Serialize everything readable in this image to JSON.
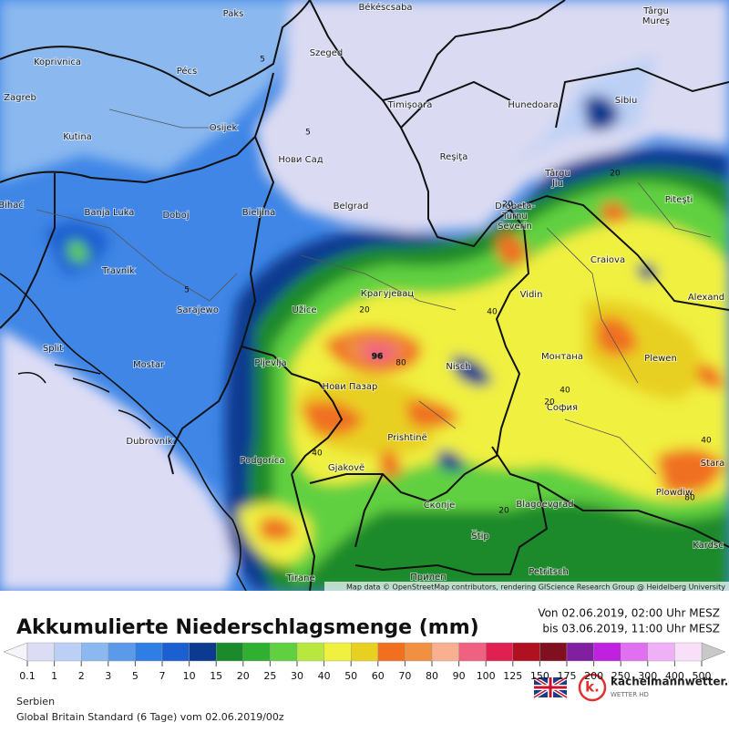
{
  "map": {
    "cities": [
      {
        "lines": [
          "Paks"
        ]
      },
      {
        "lines": [
          "Békéscsaba"
        ]
      },
      {
        "lines": [
          "Târgu",
          "Mureş"
        ]
      },
      {
        "lines": [
          "Koprivnica"
        ]
      },
      {
        "lines": [
          "Pécs"
        ]
      },
      {
        "lines": [
          "Szeged"
        ]
      },
      {
        "lines": [
          "Zagreb"
        ]
      },
      {
        "lines": [
          "Timişoara"
        ]
      },
      {
        "lines": [
          "Hunedoara"
        ]
      },
      {
        "lines": [
          "Sibiu"
        ]
      },
      {
        "lines": [
          "Osijek"
        ]
      },
      {
        "lines": [
          "Kutina"
        ]
      },
      {
        "lines": [
          "Нови Сад"
        ]
      },
      {
        "lines": [
          "Reşiţa"
        ]
      },
      {
        "lines": [
          "Târgu",
          "Jiu"
        ]
      },
      {
        "lines": [
          "Piteşti"
        ]
      },
      {
        "lines": [
          "Bihać"
        ]
      },
      {
        "lines": [
          "Banja Luka"
        ]
      },
      {
        "lines": [
          "Doboj"
        ]
      },
      {
        "lines": [
          "Bieljina"
        ]
      },
      {
        "lines": [
          "Belgrad"
        ]
      },
      {
        "lines": [
          "Drobeta-",
          "Turnu",
          "Severin"
        ]
      },
      {
        "lines": [
          "Craiova"
        ]
      },
      {
        "lines": [
          "Travnik"
        ]
      },
      {
        "lines": [
          "Крагујевац"
        ]
      },
      {
        "lines": [
          "Vidin"
        ]
      },
      {
        "lines": [
          "Alexand"
        ]
      },
      {
        "lines": [
          "Sarajewo"
        ]
      },
      {
        "lines": [
          "Užice"
        ]
      },
      {
        "lines": [
          "Split"
        ]
      },
      {
        "lines": [
          "Монтана"
        ]
      },
      {
        "lines": [
          "Plewen"
        ]
      },
      {
        "lines": [
          "Mostar"
        ]
      },
      {
        "lines": [
          "Pljevlja"
        ]
      },
      {
        "lines": [
          "Nisch"
        ]
      },
      {
        "lines": [
          "Нови Пазар"
        ]
      },
      {
        "lines": [
          "София"
        ]
      },
      {
        "lines": [
          "Dubrovnik"
        ]
      },
      {
        "lines": [
          "Prishtinë"
        ]
      },
      {
        "lines": [
          "Podgorica"
        ]
      },
      {
        "lines": [
          "Gjakovë"
        ]
      },
      {
        "lines": [
          "Stara"
        ]
      },
      {
        "lines": [
          "Plowdiw"
        ]
      },
      {
        "lines": [
          "Скопје"
        ]
      },
      {
        "lines": [
          "Blagoevgrad"
        ]
      },
      {
        "lines": [
          "Štip"
        ]
      },
      {
        "lines": [
          "Kardsc"
        ]
      },
      {
        "lines": [
          "Tirane"
        ]
      },
      {
        "lines": [
          "Прилеп"
        ]
      },
      {
        "lines": [
          "Petritsch"
        ]
      }
    ],
    "contour_labels": [
      "5",
      "5",
      "5",
      "20",
      "80",
      "96",
      "40",
      "40",
      "20",
      "20",
      "40",
      "20",
      "40",
      "80",
      "20"
    ],
    "attribution": "Map data © OpenStreetMap contributors, rendering GIScience Research Group @ Heidelberg University"
  },
  "header": {
    "title": "Akkumulierte Niederschlagsmenge (mm)",
    "from": "Von 02.06.2019, 02:00 Uhr MESZ",
    "to": "bis 03.06.2019, 11:00 Uhr MESZ"
  },
  "legend": {
    "ticks": [
      0.1,
      1,
      2,
      3,
      5,
      7,
      10,
      15,
      20,
      25,
      30,
      40,
      50,
      60,
      70,
      80,
      90,
      100,
      125,
      150,
      175,
      200,
      250,
      300,
      400,
      500
    ],
    "colors": [
      "#dcdcf5",
      "#bcd0f5",
      "#8cb8f0",
      "#5a9ae8",
      "#2f7ee6",
      "#1c5fd0",
      "#0c3a90",
      "#1a8a2a",
      "#30b030",
      "#60d040",
      "#b8e840",
      "#f0f040",
      "#e8d020",
      "#f07020",
      "#f09040",
      "#f8b090",
      "#f06080",
      "#e02050",
      "#b01020",
      "#801020",
      "#8020a0",
      "#c020e0",
      "#e070f0",
      "#f0b0f8",
      "#f8e0f8"
    ]
  },
  "footer": {
    "region": "Serbien",
    "model": "Global Britain Standard (6 Tage) vom 02.06.2019/00z",
    "brand": "kachelmannwetter.com",
    "brand_sub": "WETTER HD"
  }
}
